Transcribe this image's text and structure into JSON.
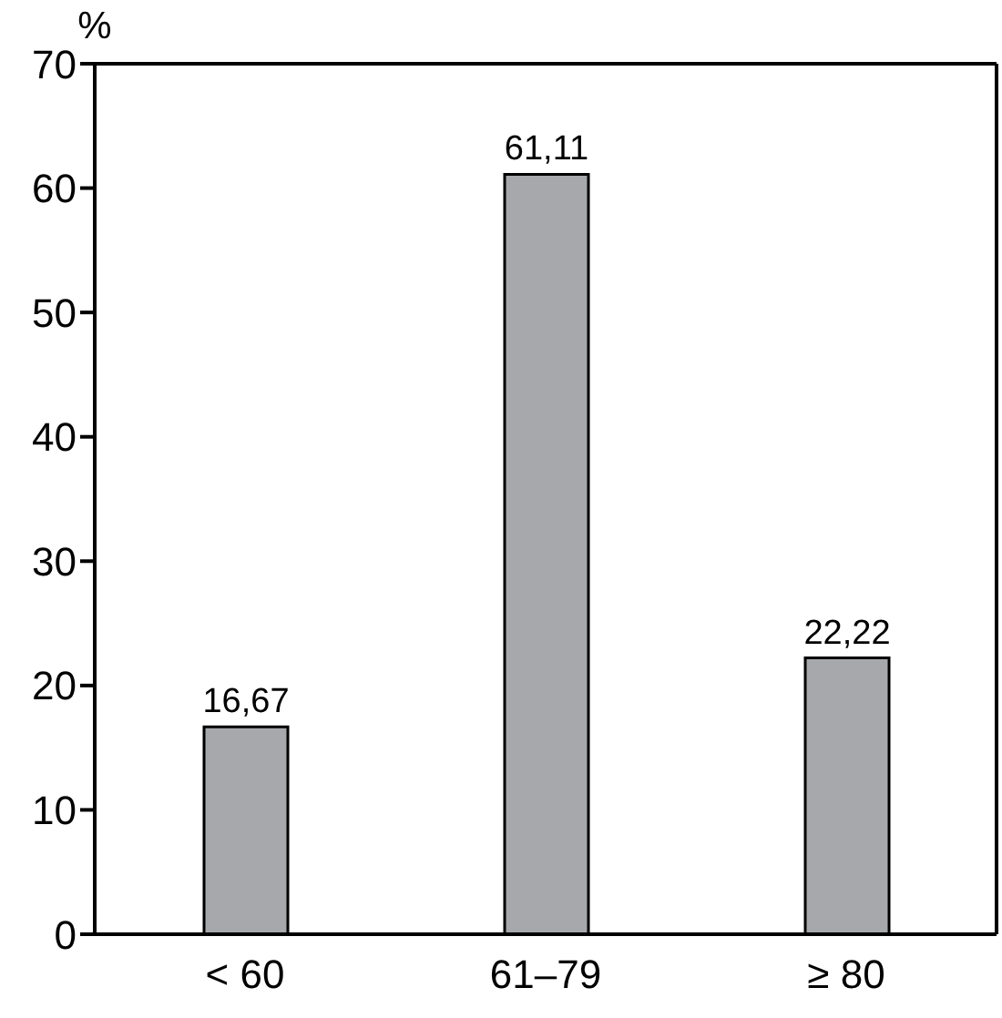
{
  "chart_data": {
    "type": "bar",
    "ylabel": "%",
    "categories": [
      "< 60",
      "61–79",
      "≥ 80"
    ],
    "values": [
      16.67,
      61.11,
      22.22
    ],
    "value_labels": [
      "16,67",
      "61,11",
      "22,22"
    ],
    "color": "#a7a8ab",
    "ylim": [
      0,
      70
    ],
    "yticks": [
      0,
      10,
      20,
      30,
      40,
      50,
      60,
      70
    ]
  }
}
